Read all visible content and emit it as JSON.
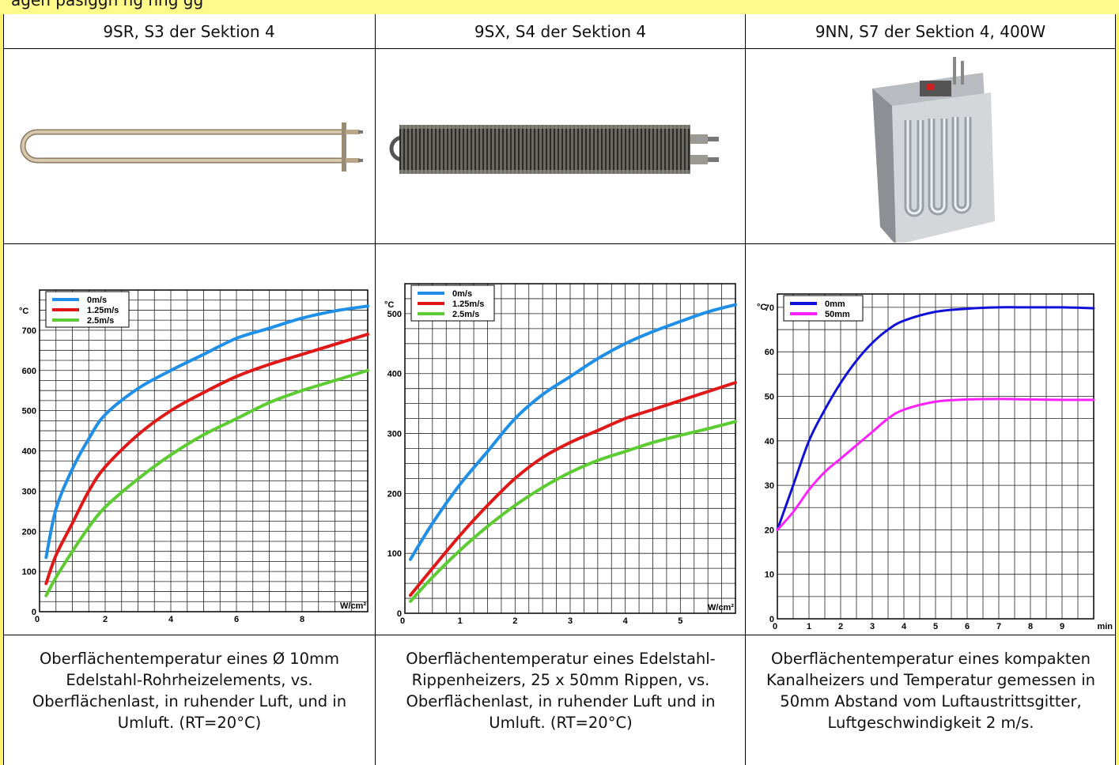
{
  "top_note": "agen                                  pasiggn                                                                         ng                          nng gg",
  "columns": [
    {
      "header": "9SR, S3 der Sektion 4",
      "caption": "Oberflächentemperatur eines Ø 10mm Edelstahl-Rohrheizelements, vs. Oberflächenlast, in ruhender Luft, und in Umluft. (RT=20°C)",
      "image_icon": "u-tube-heater-photo"
    },
    {
      "header": "9SX, S4 der Sektion 4",
      "caption": "Oberflächentemperatur eines Edelstahl-Rippenheizers, 25 x 50mm Rippen, vs. Oberflächenlast, in ruhender Luft und in Umluft. (RT=20°C)",
      "image_icon": "finned-heater-photo"
    },
    {
      "header": "9NN, S7 der Sektion 4, 400W",
      "caption": "Oberflächentemperatur eines kompakten Kanalheizers und Temperatur gemessen in 50mm Abstand vom Luftaustrittsgitter, Luftgeschwindigkeit 2 m/s.",
      "image_icon": "duct-heater-photo"
    }
  ],
  "chart_data": [
    {
      "type": "line",
      "ylabel": "°C",
      "xlabel": "W/cm²",
      "xlim": [
        0,
        10
      ],
      "ylim": [
        0,
        800
      ],
      "xticks": [
        0,
        2,
        4,
        6,
        8
      ],
      "yticks": [
        0,
        100,
        200,
        300,
        400,
        500,
        600,
        700
      ],
      "grid": true,
      "legend_position": "top-left",
      "series": [
        {
          "name": "0m/s",
          "color": "#1f8fe8",
          "points": [
            [
              0.2,
              135
            ],
            [
              0.5,
              255
            ],
            [
              1,
              355
            ],
            [
              1.5,
              430
            ],
            [
              2,
              490
            ],
            [
              3,
              555
            ],
            [
              4,
              600
            ],
            [
              5,
              640
            ],
            [
              6,
              680
            ],
            [
              7,
              705
            ],
            [
              8,
              730
            ],
            [
              9,
              748
            ],
            [
              10,
              760
            ]
          ]
        },
        {
          "name": "1.25m/s",
          "color": "#e01818",
          "points": [
            [
              0.2,
              70
            ],
            [
              0.5,
              140
            ],
            [
              1,
              220
            ],
            [
              1.5,
              300
            ],
            [
              2,
              360
            ],
            [
              3,
              440
            ],
            [
              4,
              500
            ],
            [
              5,
              545
            ],
            [
              6,
              585
            ],
            [
              7,
              615
            ],
            [
              8,
              640
            ],
            [
              9,
              665
            ],
            [
              10,
              690
            ]
          ]
        },
        {
          "name": "2.5m/s",
          "color": "#5ccc32",
          "points": [
            [
              0.2,
              40
            ],
            [
              0.5,
              85
            ],
            [
              1,
              150
            ],
            [
              1.5,
              210
            ],
            [
              2,
              260
            ],
            [
              3,
              330
            ],
            [
              4,
              390
            ],
            [
              5,
              440
            ],
            [
              6,
              480
            ],
            [
              7,
              520
            ],
            [
              8,
              550
            ],
            [
              9,
              575
            ],
            [
              10,
              600
            ]
          ]
        }
      ]
    },
    {
      "type": "line",
      "ylabel": "°C",
      "xlabel": "W/cm²",
      "xlim": [
        0,
        6
      ],
      "ylim": [
        0,
        550
      ],
      "xticks": [
        0,
        1,
        2,
        3,
        4,
        5
      ],
      "yticks": [
        0,
        100,
        200,
        300,
        400,
        500
      ],
      "grid": true,
      "legend_position": "top-left",
      "series": [
        {
          "name": "0m/s",
          "color": "#1f8fe8",
          "points": [
            [
              0.1,
              90
            ],
            [
              0.5,
              150
            ],
            [
              1,
              215
            ],
            [
              1.5,
              270
            ],
            [
              2,
              325
            ],
            [
              2.5,
              365
            ],
            [
              3,
              395
            ],
            [
              3.5,
              425
            ],
            [
              4,
              450
            ],
            [
              4.5,
              470
            ],
            [
              5,
              487
            ],
            [
              5.5,
              503
            ],
            [
              6,
              515
            ]
          ]
        },
        {
          "name": "1.25m/s",
          "color": "#e01818",
          "points": [
            [
              0.1,
              30
            ],
            [
              0.5,
              75
            ],
            [
              1,
              130
            ],
            [
              1.5,
              180
            ],
            [
              2,
              225
            ],
            [
              2.5,
              260
            ],
            [
              3,
              285
            ],
            [
              3.5,
              305
            ],
            [
              4,
              325
            ],
            [
              4.5,
              340
            ],
            [
              5,
              355
            ],
            [
              5.5,
              370
            ],
            [
              6,
              385
            ]
          ]
        },
        {
          "name": "2.5m/s",
          "color": "#5ccc32",
          "points": [
            [
              0.1,
              20
            ],
            [
              0.5,
              60
            ],
            [
              1,
              105
            ],
            [
              1.5,
              145
            ],
            [
              2,
              180
            ],
            [
              2.5,
              210
            ],
            [
              3,
              235
            ],
            [
              3.5,
              255
            ],
            [
              4,
              270
            ],
            [
              4.5,
              285
            ],
            [
              5,
              297
            ],
            [
              5.5,
              308
            ],
            [
              6,
              320
            ]
          ]
        }
      ]
    },
    {
      "type": "line",
      "ylabel": "°C",
      "xlabel": "min",
      "xlim": [
        0,
        10
      ],
      "ylim": [
        0,
        73
      ],
      "xticks": [
        0,
        1,
        2,
        3,
        4,
        5,
        6,
        7,
        8,
        9
      ],
      "yticks": [
        0,
        10,
        20,
        30,
        40,
        50,
        60,
        70
      ],
      "grid": true,
      "legend_position": "top-left",
      "series": [
        {
          "name": "0mm",
          "color": "#1010d8",
          "points": [
            [
              0,
              20
            ],
            [
              0.5,
              30
            ],
            [
              1,
              40
            ],
            [
              1.5,
              47
            ],
            [
              2,
              53
            ],
            [
              2.5,
              58
            ],
            [
              3,
              62
            ],
            [
              3.5,
              65
            ],
            [
              4,
              67
            ],
            [
              5,
              69
            ],
            [
              6,
              69.7
            ],
            [
              7,
              70
            ],
            [
              8,
              70
            ],
            [
              9,
              70
            ],
            [
              10,
              69.8
            ]
          ]
        },
        {
          "name": "50mm",
          "color": "#ff20ff",
          "points": [
            [
              0,
              20
            ],
            [
              0.5,
              24
            ],
            [
              1,
              29
            ],
            [
              1.5,
              33
            ],
            [
              2,
              36
            ],
            [
              2.5,
              39
            ],
            [
              3,
              42
            ],
            [
              3.5,
              45
            ],
            [
              4,
              47
            ],
            [
              5,
              48.8
            ],
            [
              6,
              49.3
            ],
            [
              7,
              49.4
            ],
            [
              8,
              49.3
            ],
            [
              9,
              49.2
            ],
            [
              10,
              49.2
            ]
          ]
        }
      ]
    }
  ]
}
